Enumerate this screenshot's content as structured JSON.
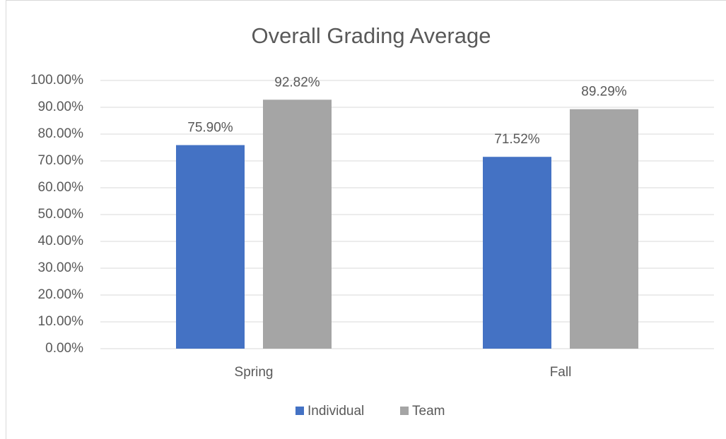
{
  "chart_data": {
    "type": "bar",
    "title": "Overall Grading Average",
    "categories": [
      "Spring",
      "Fall"
    ],
    "series": [
      {
        "name": "Individual",
        "color": "#4472c4",
        "values": [
          75.9,
          71.52
        ],
        "value_labels": [
          "75.90%",
          "71.52%"
        ]
      },
      {
        "name": "Team",
        "color": "#a5a5a5",
        "values": [
          92.82,
          89.29
        ],
        "value_labels": [
          "92.82%",
          "89.29%"
        ]
      }
    ],
    "ylim": [
      0,
      100
    ],
    "yticks": [
      {
        "value": 0,
        "label": "0.00%"
      },
      {
        "value": 10,
        "label": "10.00%"
      },
      {
        "value": 20,
        "label": "20.00%"
      },
      {
        "value": 30,
        "label": "30.00%"
      },
      {
        "value": 40,
        "label": "40.00%"
      },
      {
        "value": 50,
        "label": "50.00%"
      },
      {
        "value": 60,
        "label": "60.00%"
      },
      {
        "value": 70,
        "label": "70.00%"
      },
      {
        "value": 80,
        "label": "80.00%"
      },
      {
        "value": 90,
        "label": "90.00%"
      },
      {
        "value": 100,
        "label": "100.00%"
      }
    ],
    "grid": true,
    "legend": "bottom"
  }
}
